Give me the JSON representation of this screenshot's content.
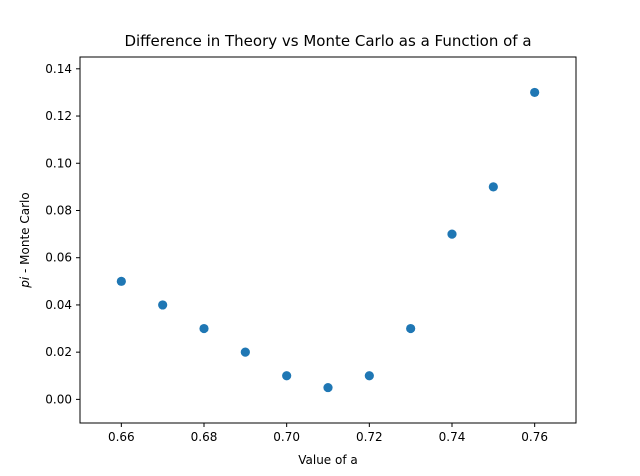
{
  "chart_data": {
    "type": "scatter",
    "title": "Difference in Theory vs Monte Carlo as a Function of a",
    "xlabel": "Value of a",
    "ylabel_italic": "pi",
    "ylabel_rest": " - Monte Carlo",
    "xlim": [
      0.65,
      0.77
    ],
    "ylim": [
      -0.01,
      0.145
    ],
    "x_ticks": [
      0.66,
      0.68,
      0.7,
      0.72,
      0.74,
      0.76
    ],
    "x_tick_labels": [
      "0.66",
      "0.68",
      "0.70",
      "0.72",
      "0.74",
      "0.76"
    ],
    "y_ticks": [
      0.0,
      0.02,
      0.04,
      0.06,
      0.08,
      0.1,
      0.12,
      0.14
    ],
    "y_tick_labels": [
      "0.00",
      "0.02",
      "0.04",
      "0.06",
      "0.08",
      "0.10",
      "0.12",
      "0.14"
    ],
    "grid": false,
    "marker_color": "#1f77b4",
    "points": [
      {
        "x": 0.66,
        "y": 0.05
      },
      {
        "x": 0.67,
        "y": 0.04
      },
      {
        "x": 0.68,
        "y": 0.03
      },
      {
        "x": 0.69,
        "y": 0.02
      },
      {
        "x": 0.7,
        "y": 0.01
      },
      {
        "x": 0.71,
        "y": 0.005
      },
      {
        "x": 0.72,
        "y": 0.01
      },
      {
        "x": 0.73,
        "y": 0.03
      },
      {
        "x": 0.74,
        "y": 0.07
      },
      {
        "x": 0.75,
        "y": 0.09
      },
      {
        "x": 0.76,
        "y": 0.13
      }
    ]
  }
}
